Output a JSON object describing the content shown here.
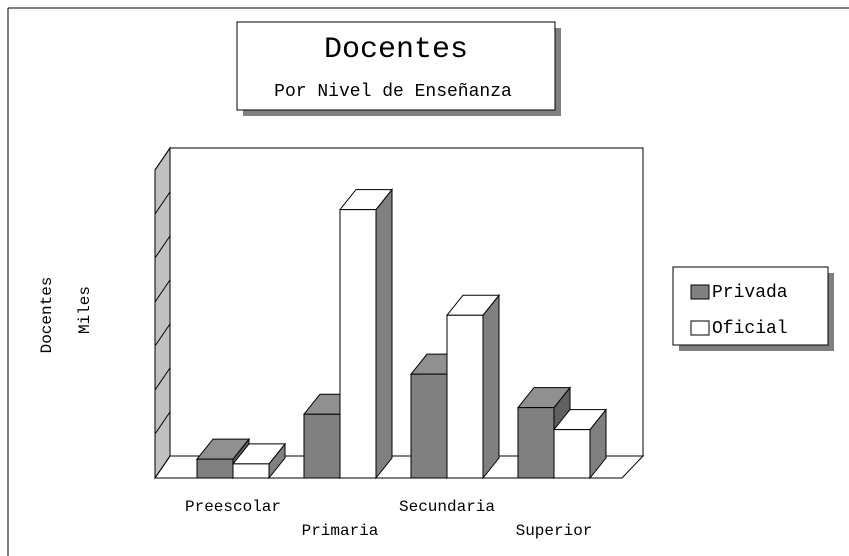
{
  "chart_data": {
    "type": "bar3d",
    "title": "Docentes",
    "subtitle": "Por Nivel de Enseñanza",
    "ylabel": "Docentes",
    "ylabel2": "Miles",
    "categories": [
      "Preescolar",
      "Primaria",
      "Secundaria",
      "Superior"
    ],
    "series": [
      {
        "name": "Privada",
        "color": "#808080",
        "values": [
          0.43,
          1.45,
          2.36,
          1.6
        ]
      },
      {
        "name": "Oficial",
        "color": "#ffffff",
        "values": [
          0.32,
          6.1,
          3.7,
          1.1
        ]
      }
    ],
    "ylim": [
      0,
      7
    ],
    "yticks": [
      0,
      1,
      2,
      3,
      4,
      5,
      6,
      7
    ],
    "legend": "right"
  }
}
